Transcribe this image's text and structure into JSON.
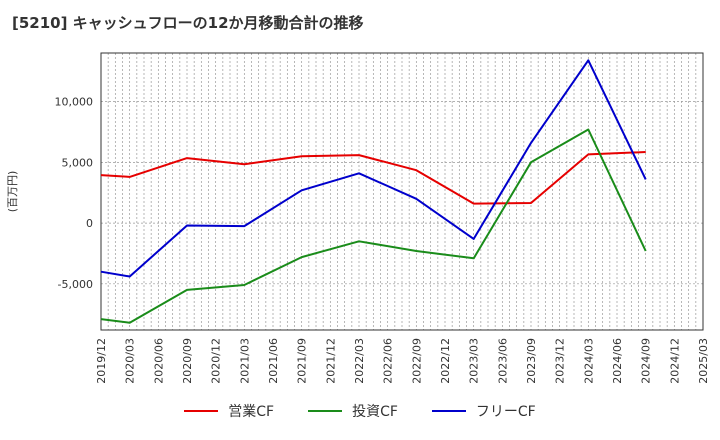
{
  "chart_data": {
    "type": "line",
    "title": "[5210]  キャッシュフローの12か月移動合計の推移",
    "ylabel": "(百万円)",
    "xlabel": "",
    "ylim": [
      -8800,
      14000
    ],
    "yticks": [
      -5000,
      0,
      5000,
      10000
    ],
    "ytick_labels": [
      "-5,000",
      "0",
      "5,000",
      "10,000"
    ],
    "categories": [
      "2019/12",
      "2020/03",
      "2020/06",
      "2020/09",
      "2020/12",
      "2021/03",
      "2021/06",
      "2021/09",
      "2021/12",
      "2022/03",
      "2022/06",
      "2022/09",
      "2022/12",
      "2023/03",
      "2023/06",
      "2023/09",
      "2023/12",
      "2024/03",
      "2024/06",
      "2024/09",
      "2024/12",
      "2025/03"
    ],
    "series": [
      {
        "name": "営業CF",
        "color": "#e60000",
        "values": [
          3950,
          3800,
          null,
          5350,
          null,
          4850,
          null,
          5500,
          null,
          5600,
          null,
          4350,
          null,
          1600,
          null,
          1650,
          null,
          5650,
          null,
          5850,
          null,
          null
        ]
      },
      {
        "name": "投資CF",
        "color": "#1a8c1a",
        "values": [
          -7900,
          -8200,
          null,
          -5500,
          null,
          -5100,
          null,
          -2800,
          null,
          -1500,
          null,
          -2300,
          null,
          -2900,
          null,
          5000,
          null,
          7700,
          null,
          -2300,
          null,
          null
        ]
      },
      {
        "name": "フリーCF",
        "color": "#0000cc",
        "values": [
          -4000,
          -4400,
          null,
          -200,
          null,
          -250,
          null,
          2700,
          null,
          4100,
          null,
          2000,
          null,
          -1300,
          null,
          6600,
          null,
          13400,
          null,
          3600,
          null,
          null
        ]
      }
    ],
    "grid": true,
    "legend_position": "bottom"
  }
}
